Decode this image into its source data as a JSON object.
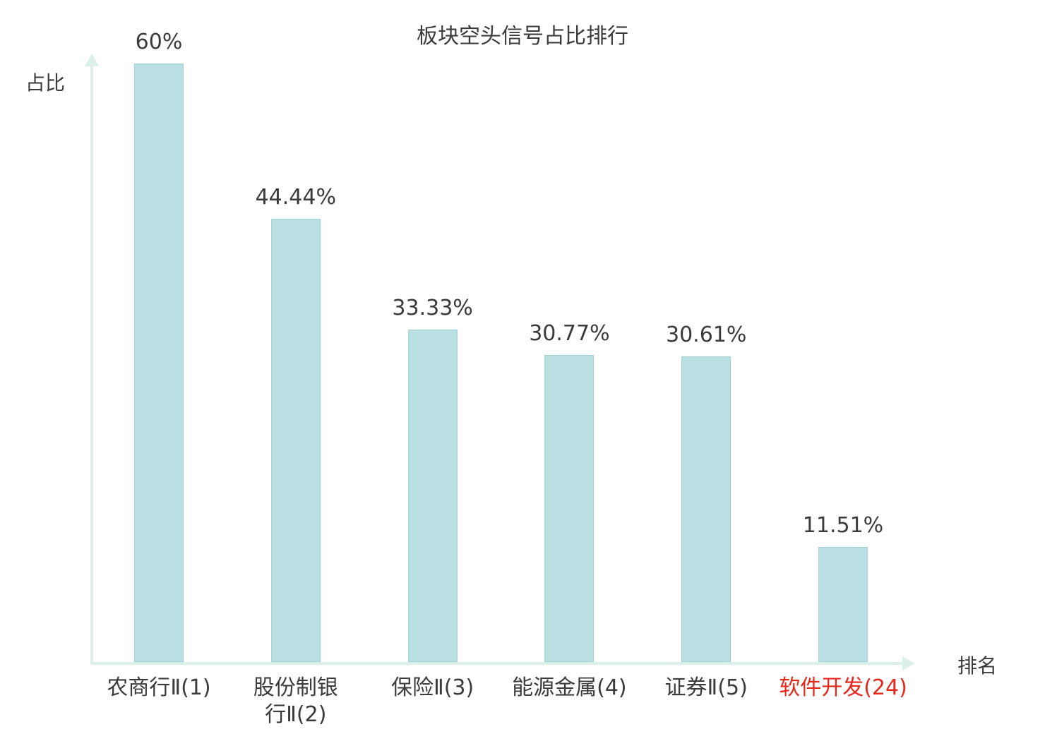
{
  "chart_data": {
    "type": "bar",
    "title": "板块空头信号占比排行",
    "xlabel": "排名",
    "ylabel": "占比",
    "ylim": [
      0,
      60
    ],
    "grid": false,
    "legend": false,
    "bar_color": "#b9dfe3",
    "bar_border_color": "#a3d2d8",
    "axis_color": "#dcf0ea",
    "value_label_color": "#3b3b3b",
    "highlight_color": "#e6281c",
    "categories": [
      {
        "label": "农商行Ⅱ(1)",
        "lines": [
          "农商行Ⅱ(1)"
        ],
        "color": "#3b3b3b"
      },
      {
        "label": "股份制银行Ⅱ(2)",
        "lines": [
          "股份制银",
          "行Ⅱ(2)"
        ],
        "color": "#3b3b3b"
      },
      {
        "label": "保险Ⅱ(3)",
        "lines": [
          "保险Ⅱ(3)"
        ],
        "color": "#3b3b3b"
      },
      {
        "label": "能源金属(4)",
        "lines": [
          "能源金属(4)"
        ],
        "color": "#3b3b3b"
      },
      {
        "label": "证券Ⅱ(5)",
        "lines": [
          "证券Ⅱ(5)"
        ],
        "color": "#3b3b3b"
      },
      {
        "label": "软件开发(24)",
        "lines": [
          "软件开发(24)"
        ],
        "color": "#e6281c"
      }
    ],
    "values": [
      60,
      44.44,
      33.33,
      30.77,
      30.61,
      11.51
    ],
    "value_labels": [
      "60%",
      "44.44%",
      "33.33%",
      "30.77%",
      "30.61%",
      "11.51%"
    ]
  }
}
